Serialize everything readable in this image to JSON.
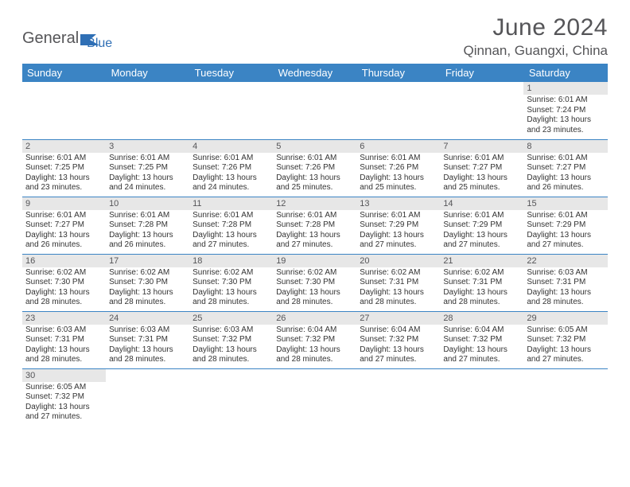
{
  "brand": {
    "part1": "General",
    "part2": "Blue"
  },
  "title": "June 2024",
  "location": "Qinnan, Guangxi, China",
  "colors": {
    "header_bg": "#3b84c4",
    "header_text": "#ffffff",
    "daynum_bg": "#e7e7e7",
    "text": "#555558",
    "border": "#3b84c4"
  },
  "weekdays": [
    "Sunday",
    "Monday",
    "Tuesday",
    "Wednesday",
    "Thursday",
    "Friday",
    "Saturday"
  ],
  "weeks": [
    [
      null,
      null,
      null,
      null,
      null,
      null,
      {
        "n": "1",
        "sr": "Sunrise: 6:01 AM",
        "ss": "Sunset: 7:24 PM",
        "d1": "Daylight: 13 hours",
        "d2": "and 23 minutes."
      }
    ],
    [
      {
        "n": "2",
        "sr": "Sunrise: 6:01 AM",
        "ss": "Sunset: 7:25 PM",
        "d1": "Daylight: 13 hours",
        "d2": "and 23 minutes."
      },
      {
        "n": "3",
        "sr": "Sunrise: 6:01 AM",
        "ss": "Sunset: 7:25 PM",
        "d1": "Daylight: 13 hours",
        "d2": "and 24 minutes."
      },
      {
        "n": "4",
        "sr": "Sunrise: 6:01 AM",
        "ss": "Sunset: 7:26 PM",
        "d1": "Daylight: 13 hours",
        "d2": "and 24 minutes."
      },
      {
        "n": "5",
        "sr": "Sunrise: 6:01 AM",
        "ss": "Sunset: 7:26 PM",
        "d1": "Daylight: 13 hours",
        "d2": "and 25 minutes."
      },
      {
        "n": "6",
        "sr": "Sunrise: 6:01 AM",
        "ss": "Sunset: 7:26 PM",
        "d1": "Daylight: 13 hours",
        "d2": "and 25 minutes."
      },
      {
        "n": "7",
        "sr": "Sunrise: 6:01 AM",
        "ss": "Sunset: 7:27 PM",
        "d1": "Daylight: 13 hours",
        "d2": "and 25 minutes."
      },
      {
        "n": "8",
        "sr": "Sunrise: 6:01 AM",
        "ss": "Sunset: 7:27 PM",
        "d1": "Daylight: 13 hours",
        "d2": "and 26 minutes."
      }
    ],
    [
      {
        "n": "9",
        "sr": "Sunrise: 6:01 AM",
        "ss": "Sunset: 7:27 PM",
        "d1": "Daylight: 13 hours",
        "d2": "and 26 minutes."
      },
      {
        "n": "10",
        "sr": "Sunrise: 6:01 AM",
        "ss": "Sunset: 7:28 PM",
        "d1": "Daylight: 13 hours",
        "d2": "and 26 minutes."
      },
      {
        "n": "11",
        "sr": "Sunrise: 6:01 AM",
        "ss": "Sunset: 7:28 PM",
        "d1": "Daylight: 13 hours",
        "d2": "and 27 minutes."
      },
      {
        "n": "12",
        "sr": "Sunrise: 6:01 AM",
        "ss": "Sunset: 7:28 PM",
        "d1": "Daylight: 13 hours",
        "d2": "and 27 minutes."
      },
      {
        "n": "13",
        "sr": "Sunrise: 6:01 AM",
        "ss": "Sunset: 7:29 PM",
        "d1": "Daylight: 13 hours",
        "d2": "and 27 minutes."
      },
      {
        "n": "14",
        "sr": "Sunrise: 6:01 AM",
        "ss": "Sunset: 7:29 PM",
        "d1": "Daylight: 13 hours",
        "d2": "and 27 minutes."
      },
      {
        "n": "15",
        "sr": "Sunrise: 6:01 AM",
        "ss": "Sunset: 7:29 PM",
        "d1": "Daylight: 13 hours",
        "d2": "and 27 minutes."
      }
    ],
    [
      {
        "n": "16",
        "sr": "Sunrise: 6:02 AM",
        "ss": "Sunset: 7:30 PM",
        "d1": "Daylight: 13 hours",
        "d2": "and 28 minutes."
      },
      {
        "n": "17",
        "sr": "Sunrise: 6:02 AM",
        "ss": "Sunset: 7:30 PM",
        "d1": "Daylight: 13 hours",
        "d2": "and 28 minutes."
      },
      {
        "n": "18",
        "sr": "Sunrise: 6:02 AM",
        "ss": "Sunset: 7:30 PM",
        "d1": "Daylight: 13 hours",
        "d2": "and 28 minutes."
      },
      {
        "n": "19",
        "sr": "Sunrise: 6:02 AM",
        "ss": "Sunset: 7:30 PM",
        "d1": "Daylight: 13 hours",
        "d2": "and 28 minutes."
      },
      {
        "n": "20",
        "sr": "Sunrise: 6:02 AM",
        "ss": "Sunset: 7:31 PM",
        "d1": "Daylight: 13 hours",
        "d2": "and 28 minutes."
      },
      {
        "n": "21",
        "sr": "Sunrise: 6:02 AM",
        "ss": "Sunset: 7:31 PM",
        "d1": "Daylight: 13 hours",
        "d2": "and 28 minutes."
      },
      {
        "n": "22",
        "sr": "Sunrise: 6:03 AM",
        "ss": "Sunset: 7:31 PM",
        "d1": "Daylight: 13 hours",
        "d2": "and 28 minutes."
      }
    ],
    [
      {
        "n": "23",
        "sr": "Sunrise: 6:03 AM",
        "ss": "Sunset: 7:31 PM",
        "d1": "Daylight: 13 hours",
        "d2": "and 28 minutes."
      },
      {
        "n": "24",
        "sr": "Sunrise: 6:03 AM",
        "ss": "Sunset: 7:31 PM",
        "d1": "Daylight: 13 hours",
        "d2": "and 28 minutes."
      },
      {
        "n": "25",
        "sr": "Sunrise: 6:03 AM",
        "ss": "Sunset: 7:32 PM",
        "d1": "Daylight: 13 hours",
        "d2": "and 28 minutes."
      },
      {
        "n": "26",
        "sr": "Sunrise: 6:04 AM",
        "ss": "Sunset: 7:32 PM",
        "d1": "Daylight: 13 hours",
        "d2": "and 28 minutes."
      },
      {
        "n": "27",
        "sr": "Sunrise: 6:04 AM",
        "ss": "Sunset: 7:32 PM",
        "d1": "Daylight: 13 hours",
        "d2": "and 27 minutes."
      },
      {
        "n": "28",
        "sr": "Sunrise: 6:04 AM",
        "ss": "Sunset: 7:32 PM",
        "d1": "Daylight: 13 hours",
        "d2": "and 27 minutes."
      },
      {
        "n": "29",
        "sr": "Sunrise: 6:05 AM",
        "ss": "Sunset: 7:32 PM",
        "d1": "Daylight: 13 hours",
        "d2": "and 27 minutes."
      }
    ],
    [
      {
        "n": "30",
        "sr": "Sunrise: 6:05 AM",
        "ss": "Sunset: 7:32 PM",
        "d1": "Daylight: 13 hours",
        "d2": "and 27 minutes."
      },
      null,
      null,
      null,
      null,
      null,
      null
    ]
  ]
}
